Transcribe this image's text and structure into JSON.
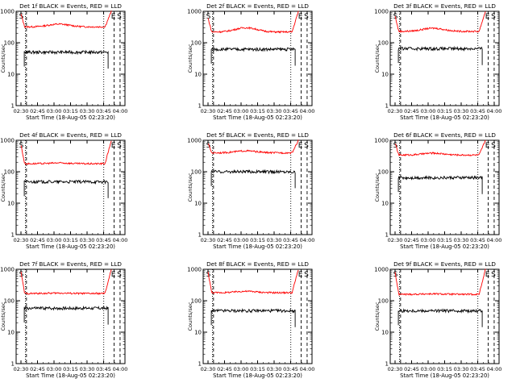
{
  "chart_data": [
    {
      "type": "line",
      "title": "Det 1f BLACK = Events, RED = LLD",
      "xlabel": "Start Time (18-Aug-05 02:23:20)",
      "ylabel": "Counts/sec",
      "x_ticks": [
        "02:30",
        "02:45",
        "03:00",
        "03:15",
        "03:30",
        "03:45",
        "04:00"
      ],
      "y_ticks": [
        "1",
        "10",
        "100",
        "1000"
      ],
      "y_scale": "log",
      "ylim": [
        1,
        1000
      ],
      "markers": [
        "S",
        "E",
        "S"
      ],
      "series": [
        {
          "color": "#ff0000",
          "profile": "bowl",
          "start_level": 800,
          "plateau": 320,
          "mid_bump": 390,
          "end_level": 1000
        },
        {
          "color": "#000000",
          "profile": "flat",
          "level": 50
        }
      ]
    },
    {
      "type": "line",
      "title": "Det 2f BLACK = Events, RED = LLD",
      "xlabel": "Start Time (18-Aug-05 02:23:20)",
      "ylabel": "Counts/sec",
      "x_ticks": [
        "02:30",
        "02:45",
        "03:00",
        "03:15",
        "03:30",
        "03:45",
        "04:00"
      ],
      "y_ticks": [
        "1",
        "10",
        "100",
        "1000"
      ],
      "y_scale": "log",
      "ylim": [
        1,
        1000
      ],
      "markers": [
        "S",
        "E",
        "S"
      ],
      "series": [
        {
          "color": "#ff0000",
          "profile": "bowl",
          "start_level": 600,
          "plateau": 220,
          "mid_bump": 300,
          "end_level": 1000
        },
        {
          "color": "#000000",
          "profile": "flat",
          "level": 62
        }
      ]
    },
    {
      "type": "line",
      "title": "Det 3f BLACK = Events, RED = LLD",
      "xlabel": "Start Time (18-Aug-05 02:23:20)",
      "ylabel": "Counts/sec",
      "x_ticks": [
        "02:30",
        "02:45",
        "03:00",
        "03:15",
        "03:30",
        "03:45",
        "04:00"
      ],
      "y_ticks": [
        "1",
        "10",
        "100",
        "1000"
      ],
      "y_scale": "log",
      "ylim": [
        1,
        1000
      ],
      "markers": [
        "S",
        "E",
        "S"
      ],
      "series": [
        {
          "color": "#ff0000",
          "profile": "bowl",
          "start_level": 700,
          "plateau": 230,
          "mid_bump": 290,
          "end_level": 1000
        },
        {
          "color": "#000000",
          "profile": "flat",
          "level": 65
        }
      ]
    },
    {
      "type": "line",
      "title": "Det 4f BLACK = Events, RED = LLD",
      "xlabel": "Start Time (18-Aug-05 02:23:20)",
      "ylabel": "Counts/sec",
      "x_ticks": [
        "02:30",
        "02:45",
        "03:00",
        "03:15",
        "03:30",
        "03:45",
        "04:00"
      ],
      "y_ticks": [
        "1",
        "10",
        "100",
        "1000"
      ],
      "y_scale": "log",
      "ylim": [
        1,
        1000
      ],
      "markers": [
        "S",
        "E",
        "S"
      ],
      "series": [
        {
          "color": "#ff0000",
          "profile": "bowl",
          "start_level": 700,
          "plateau": 180,
          "mid_bump": 190,
          "end_level": 1000
        },
        {
          "color": "#000000",
          "profile": "flat",
          "level": 48
        }
      ]
    },
    {
      "type": "line",
      "title": "Det 5f BLACK = Events, RED = LLD",
      "xlabel": "Start Time (18-Aug-05 02:23:20)",
      "ylabel": "Counts/sec",
      "x_ticks": [
        "02:30",
        "02:45",
        "03:00",
        "03:15",
        "03:30",
        "03:45",
        "04:00"
      ],
      "y_ticks": [
        "1",
        "10",
        "100",
        "1000"
      ],
      "y_scale": "log",
      "ylim": [
        1,
        1000
      ],
      "markers": [
        "S",
        "E",
        "S"
      ],
      "series": [
        {
          "color": "#ff0000",
          "profile": "bowl",
          "start_level": 800,
          "plateau": 400,
          "mid_bump": 460,
          "end_level": 1000
        },
        {
          "color": "#000000",
          "profile": "flat",
          "level": 100
        }
      ]
    },
    {
      "type": "line",
      "title": "Det 6f BLACK = Events, RED = LLD",
      "xlabel": "Start Time (18-Aug-05 02:23:20)",
      "ylabel": "Counts/sec",
      "x_ticks": [
        "02:30",
        "02:45",
        "03:00",
        "03:15",
        "03:30",
        "03:45",
        "04:00"
      ],
      "y_ticks": [
        "1",
        "10",
        "100",
        "1000"
      ],
      "y_scale": "log",
      "ylim": [
        1,
        1000
      ],
      "markers": [
        "S",
        "E",
        "S"
      ],
      "series": [
        {
          "color": "#ff0000",
          "profile": "bowl",
          "start_level": 800,
          "plateau": 340,
          "mid_bump": 390,
          "end_level": 1000
        },
        {
          "color": "#000000",
          "profile": "flat",
          "level": 65
        }
      ]
    },
    {
      "type": "line",
      "title": "Det 7f BLACK = Events, RED = LLD",
      "xlabel": "Start Time (18-Aug-05 02:23:20)",
      "ylabel": "Counts/sec",
      "x_ticks": [
        "02:30",
        "02:45",
        "03:00",
        "03:15",
        "03:30",
        "03:45",
        "04:00"
      ],
      "y_ticks": [
        "1",
        "10",
        "100",
        "1000"
      ],
      "y_scale": "log",
      "ylim": [
        1,
        1000
      ],
      "markers": [
        "S",
        "E",
        "S"
      ],
      "series": [
        {
          "color": "#ff0000",
          "profile": "bowl",
          "start_level": 800,
          "plateau": 170,
          "mid_bump": 175,
          "end_level": 1000
        },
        {
          "color": "#000000",
          "profile": "flat",
          "level": 58
        }
      ]
    },
    {
      "type": "line",
      "title": "Det 8f BLACK = Events, RED = LLD",
      "xlabel": "Start Time (18-Aug-05 02:23:20)",
      "ylabel": "Counts/sec",
      "x_ticks": [
        "02:30",
        "02:45",
        "03:00",
        "03:15",
        "03:30",
        "03:45",
        "04:00"
      ],
      "y_ticks": [
        "1",
        "10",
        "100",
        "1000"
      ],
      "y_scale": "log",
      "ylim": [
        1,
        1000
      ],
      "markers": [
        "S",
        "E",
        "S"
      ],
      "series": [
        {
          "color": "#ff0000",
          "profile": "bowl",
          "start_level": 800,
          "plateau": 180,
          "mid_bump": 200,
          "end_level": 1000
        },
        {
          "color": "#000000",
          "profile": "flat",
          "level": 48
        }
      ]
    },
    {
      "type": "line",
      "title": "Det 9f BLACK = Events, RED = LLD",
      "xlabel": "Start Time (18-Aug-05 02:23:20)",
      "ylabel": "Counts/sec",
      "x_ticks": [
        "02:30",
        "02:45",
        "03:00",
        "03:15",
        "03:30",
        "03:45",
        "04:00"
      ],
      "y_ticks": [
        "1",
        "10",
        "100",
        "1000"
      ],
      "y_scale": "log",
      "ylim": [
        1,
        1000
      ],
      "markers": [
        "S",
        "E",
        "S"
      ],
      "series": [
        {
          "color": "#ff0000",
          "profile": "bowl",
          "start_level": 800,
          "plateau": 160,
          "mid_bump": 165,
          "end_level": 1000
        },
        {
          "color": "#000000",
          "profile": "flat",
          "level": 48
        }
      ]
    }
  ]
}
